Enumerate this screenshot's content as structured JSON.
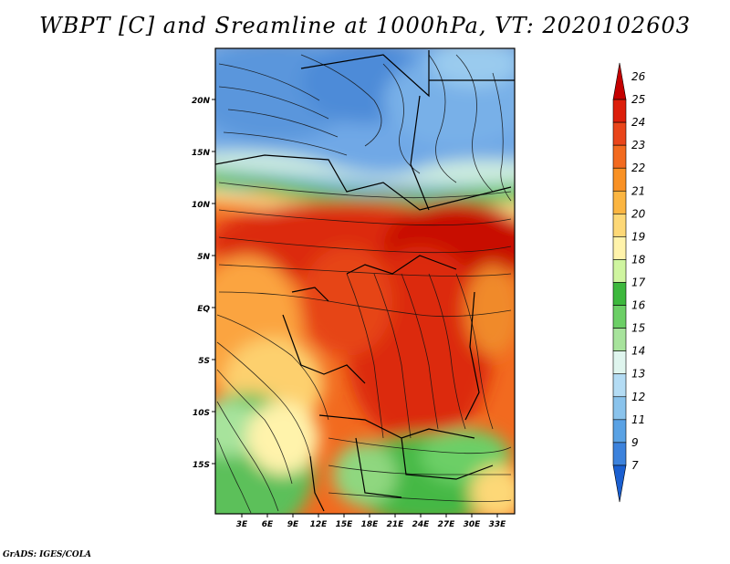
{
  "title": "WBPT [C] and Sreamline at 1000hPa, VT: 2020102603",
  "footer": "GrADS: IGES/COLA",
  "map": {
    "lat_labels": [
      "20N",
      "15N",
      "10N",
      "5N",
      "EQ",
      "5S",
      "10S",
      "15S"
    ],
    "lon_labels": [
      "3E",
      "6E",
      "9E",
      "12E",
      "15E",
      "18E",
      "21E",
      "24E",
      "27E",
      "30E",
      "33E"
    ],
    "lat_range": [
      -19.5,
      24.5
    ],
    "lon_range": [
      0,
      34.5
    ]
  },
  "colorbar": {
    "labels": [
      "26",
      "25",
      "24",
      "23",
      "22",
      "21",
      "20",
      "19",
      "18",
      "17",
      "16",
      "15",
      "14",
      "13",
      "12",
      "11",
      "9",
      "7"
    ],
    "colors": [
      "#c40000",
      "#dc1e0a",
      "#e9451a",
      "#f26a1f",
      "#f99124",
      "#fbb541",
      "#fdd877",
      "#fff3ab",
      "#cff5a0",
      "#3db83d",
      "#6ccf66",
      "#a7e39c",
      "#dff5ee",
      "#b4dcf4",
      "#8ac3ec",
      "#5aa2e4",
      "#3c82dc",
      "#1a5fd0"
    ]
  }
}
